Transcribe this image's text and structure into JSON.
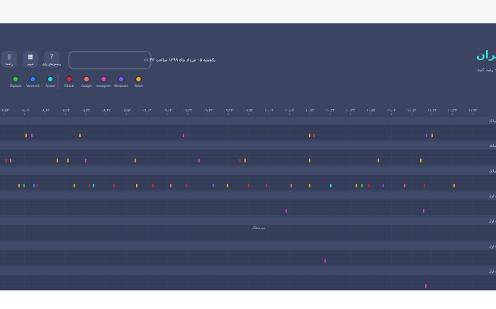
{
  "header": {
    "title": "وضعیت ارتباطات اینترنت ایران",
    "subtitle": "در این صفحه می‌توانید وضعیت ارتباطات اینترنت ایران را براساس اطلاعات زیرساخت ابر آروان - درلحظه - رصد کنید.",
    "datetime": "یکشنبه ۰۵ مرداد ماه ۱۳۹۹ ساعت ۱۱:۴۳",
    "buttons": [
      "راهنما",
      "تقویم",
      "پرسش‌های رایج"
    ]
  },
  "legend": [
    {
      "name": "Digikala",
      "color": "#2ecc40"
    },
    {
      "name": "Varzesh3",
      "color": "#2e7dff"
    },
    {
      "name": "Aparat",
      "color": "#22d3e6"
    },
    {
      "name": "Github",
      "color": "#e0243a"
    },
    {
      "name": "Google",
      "color": "#f0706a"
    },
    {
      "name": "Instagram",
      "color": "#e040c8"
    },
    {
      "name": "Wikipedia",
      "color": "#8a4dff"
    },
    {
      "name": "Twitch",
      "color": "#f5a623"
    }
  ],
  "timeline": {
    "times": [
      "۰۷:۵۳",
      "۰۸:۰۳",
      "۰۸:۱۳",
      "۰۸:۲۳",
      "۰۸:۳۳",
      "۰۸:۴۳",
      "۰۸:۵۳",
      "۰۹:۰۳",
      "۰۹:۱۳",
      "۰۹:۲۳",
      "۰۹:۳۳",
      "۰۹:۴۳",
      "۰۹:۵۳",
      "۱۰:۰۳",
      "۱۰:۱۳",
      "۱۰:۲۳",
      "۱۰:۳۳",
      "۱۰:۴۳",
      "۱۰:۵۳",
      "۱۱:۰۳",
      "۱۱:۱۳",
      "۱۱:۲۳",
      "۱۱:۳۳",
      "۱۱:۴۳"
    ],
    "rows": [
      "تهران - آسیاتک",
      "تبریز - آسیاتک",
      "شیراز - آسیاتک",
      "تهران - همراه اول",
      "تبریز - همراه اول",
      "مشهد - همراه اول",
      "اصفهان - همراه اول"
    ],
    "note": "میرشقال"
  }
}
